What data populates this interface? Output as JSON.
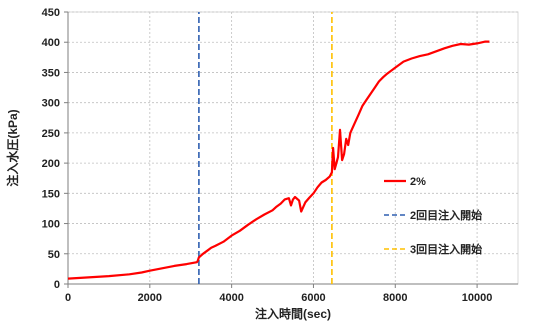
{
  "chart_data": {
    "type": "line",
    "xlabel": "注入時間(sec)",
    "ylabel": "注入水圧(kPa)",
    "xlim": [
      0,
      11000
    ],
    "ylim": [
      0,
      450
    ],
    "xticks": [
      0,
      2000,
      4000,
      6000,
      8000,
      10000
    ],
    "yticks": [
      0,
      50,
      100,
      150,
      200,
      250,
      300,
      350,
      400,
      450
    ],
    "grid": true,
    "legend_position": "right",
    "series": [
      {
        "name": "2%",
        "color": "#ff0000",
        "style": "solid",
        "x": [
          0,
          500,
          1000,
          1500,
          1800,
          2000,
          2300,
          2600,
          2900,
          3150,
          3170,
          3200,
          3300,
          3400,
          3500,
          3600,
          3800,
          4000,
          4200,
          4400,
          4600,
          4800,
          5000,
          5100,
          5200,
          5300,
          5400,
          5450,
          5500,
          5550,
          5650,
          5700,
          5800,
          5900,
          6000,
          6100,
          6200,
          6300,
          6400,
          6450,
          6480,
          6520,
          6560,
          6600,
          6650,
          6700,
          6750,
          6800,
          6850,
          6900,
          7000,
          7100,
          7200,
          7300,
          7400,
          7500,
          7600,
          7700,
          7800,
          8000,
          8200,
          8400,
          8600,
          8800,
          9000,
          9200,
          9400,
          9600,
          9800,
          10000,
          10200,
          10300
        ],
        "y": [
          9,
          11,
          13,
          16,
          19,
          22,
          26,
          30,
          33,
          36,
          38,
          44,
          50,
          55,
          60,
          63,
          70,
          80,
          88,
          98,
          107,
          115,
          122,
          128,
          133,
          140,
          142,
          130,
          140,
          144,
          138,
          120,
          135,
          143,
          150,
          160,
          168,
          172,
          178,
          185,
          225,
          190,
          200,
          210,
          255,
          205,
          215,
          240,
          230,
          250,
          265,
          280,
          295,
          305,
          315,
          325,
          335,
          342,
          348,
          358,
          368,
          373,
          377,
          380,
          385,
          390,
          394,
          397,
          396,
          398,
          401,
          401
        ]
      },
      {
        "name": "2回目注入開始",
        "color": "#2f5fb0",
        "style": "dashed",
        "x": [
          3200,
          3200
        ],
        "y": [
          0,
          450
        ]
      },
      {
        "name": "3回目注入開始",
        "color": "#ffc000",
        "style": "dashed",
        "x": [
          6450,
          6450
        ],
        "y": [
          0,
          450
        ]
      }
    ],
    "legend": [
      {
        "label": "2%",
        "color": "#ff0000",
        "style": "solid"
      },
      {
        "label": "2回目注入開始",
        "color": "#2f5fb0",
        "style": "dashed"
      },
      {
        "label": "3回目注入開始",
        "color": "#ffc000",
        "style": "dashed"
      }
    ]
  }
}
